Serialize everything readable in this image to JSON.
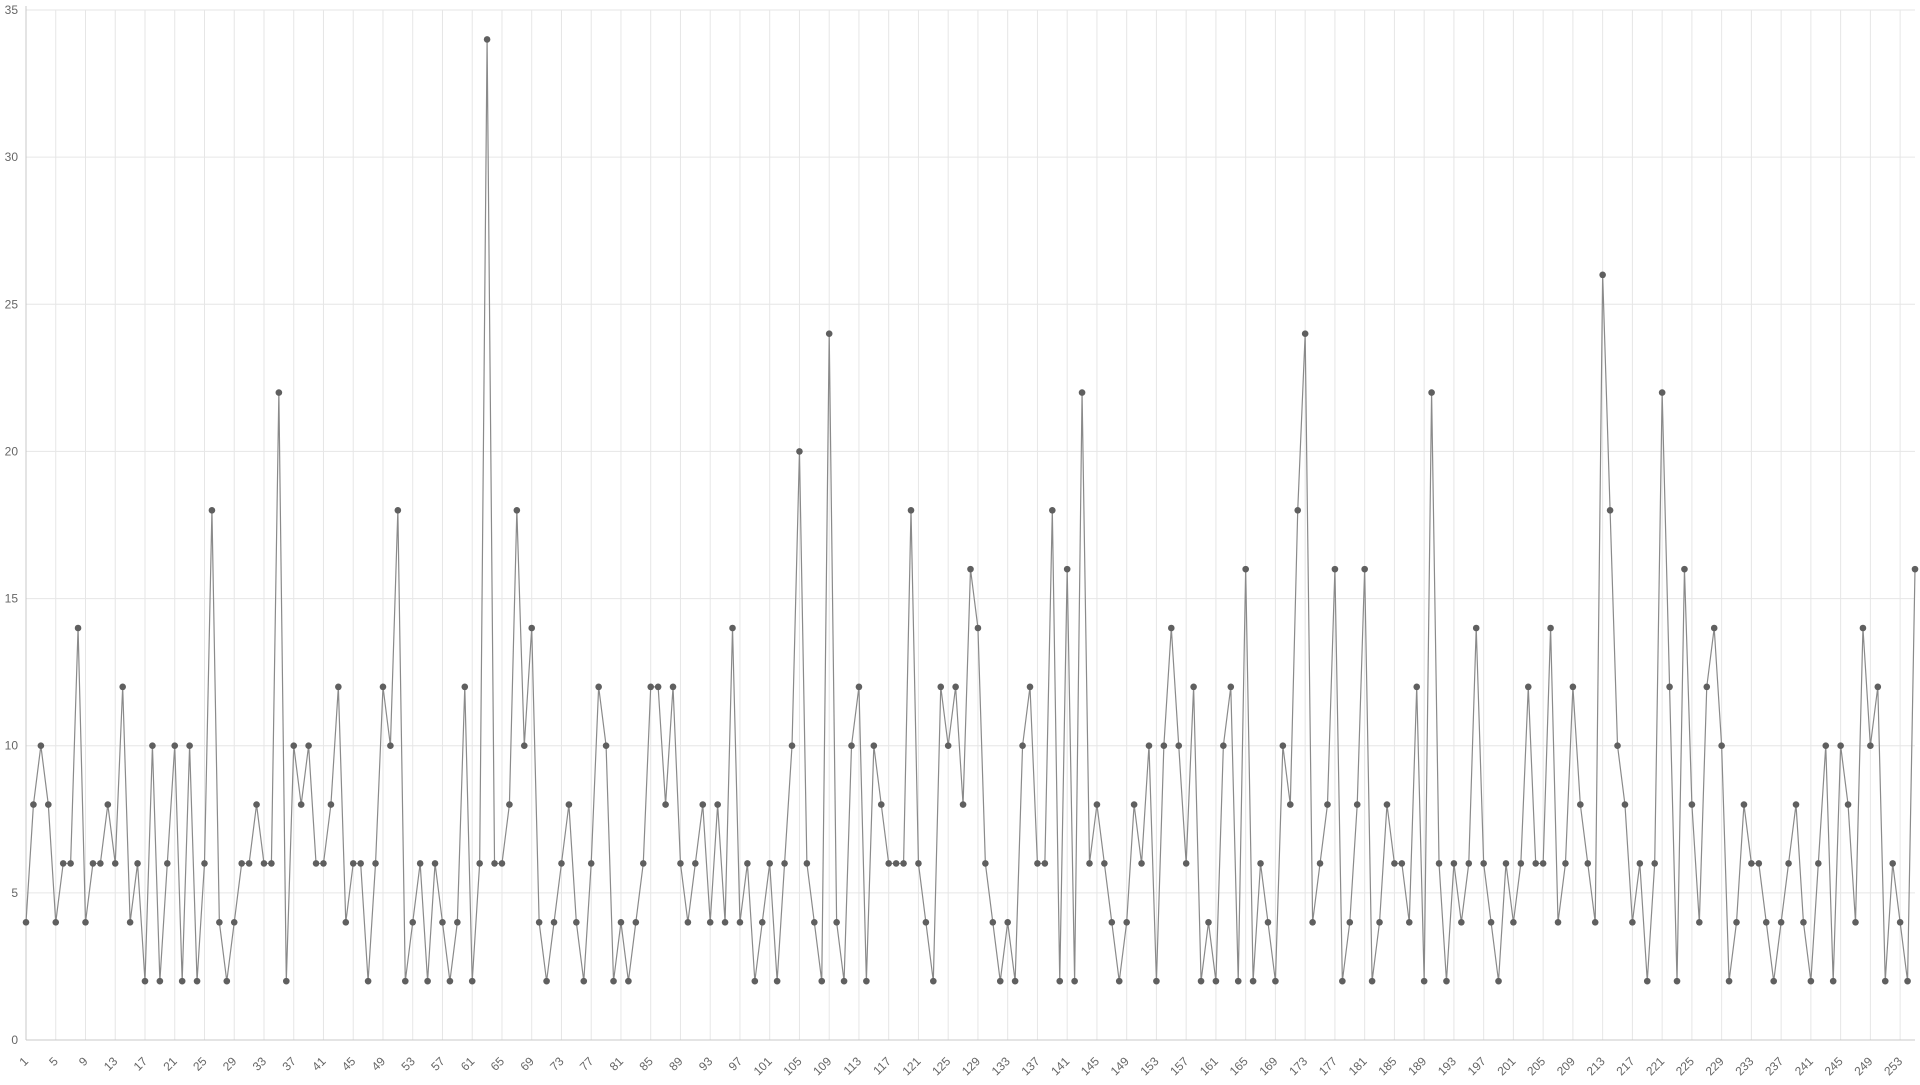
{
  "chart_data": {
    "type": "line",
    "title": "",
    "xlabel": "",
    "ylabel": "",
    "x_start": 1,
    "x_tick_step": 4,
    "y_ticks": [
      0,
      5,
      10,
      15,
      20,
      25,
      30,
      35
    ],
    "ylim": [
      0,
      35
    ],
    "grid": true,
    "colors": {
      "line": "#8a8a8a",
      "point": "#5f5f5f",
      "grid": "#e6e6e6",
      "axis": "#c8c8c8",
      "tick_text": "#666666"
    },
    "series": [
      {
        "values": [
          4,
          8,
          10,
          8,
          4,
          6,
          6,
          14,
          4,
          6,
          6,
          8,
          6,
          12,
          4,
          6,
          2,
          10,
          2,
          6,
          10,
          2,
          10,
          2,
          6,
          18,
          4,
          2,
          4,
          6,
          6,
          8,
          6,
          6,
          22,
          2,
          10,
          8,
          10,
          6,
          6,
          8,
          12,
          4,
          6,
          6,
          2,
          6,
          12,
          10,
          18,
          2,
          4,
          6,
          2,
          6,
          4,
          2,
          4,
          12,
          2,
          6,
          34,
          6,
          6,
          8,
          18,
          10,
          14,
          4,
          2,
          4,
          6,
          8,
          4,
          2,
          6,
          12,
          10,
          2,
          4,
          2,
          4,
          6,
          12,
          12,
          8,
          12,
          6,
          4,
          6,
          8,
          4,
          8,
          4,
          14,
          4,
          6,
          2,
          4,
          6,
          2,
          6,
          10,
          20,
          6,
          4,
          2,
          24,
          4,
          2,
          10,
          12,
          2,
          10,
          8,
          6,
          6,
          6,
          18,
          6,
          4,
          2,
          12,
          10,
          12,
          8,
          16,
          14,
          6,
          4,
          2,
          4,
          2,
          10,
          12,
          6,
          6,
          18,
          2,
          16,
          2,
          22,
          6,
          8,
          6,
          4,
          2,
          4,
          8,
          6,
          10,
          2,
          10,
          14,
          10,
          6,
          12,
          2,
          4,
          2,
          10,
          12,
          2,
          16,
          2,
          6,
          4,
          2,
          10,
          8,
          18,
          24,
          4,
          6,
          8,
          16,
          2,
          4,
          8,
          16,
          2,
          4,
          8,
          6,
          6,
          4,
          12,
          2,
          22,
          6,
          2,
          6,
          4,
          6,
          14,
          6,
          4,
          2,
          6,
          4,
          6,
          12,
          6,
          6,
          14,
          4,
          6,
          12,
          8,
          6,
          4,
          26,
          18,
          10,
          8,
          4,
          6,
          2,
          6,
          22,
          12,
          2,
          16,
          8,
          4,
          12,
          14,
          10,
          2,
          4,
          8,
          6,
          6,
          4,
          2,
          4,
          6,
          8,
          4,
          2,
          6,
          10,
          2,
          10,
          8,
          4,
          14,
          10,
          12,
          2,
          6,
          4,
          2,
          16
        ]
      }
    ]
  }
}
